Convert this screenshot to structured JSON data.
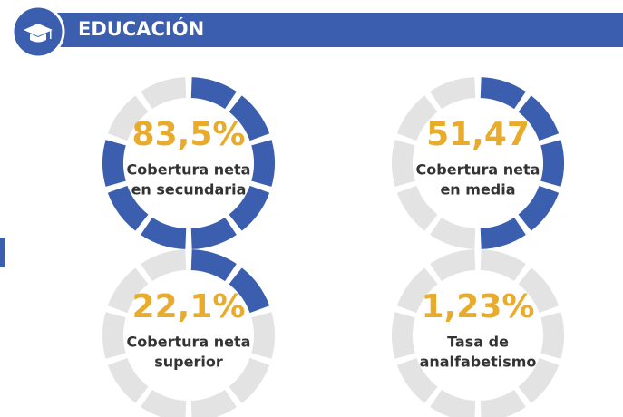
{
  "header": {
    "title": "EDUCACIÓN"
  },
  "chart_data": [
    {
      "type": "gauge",
      "value": 83.5,
      "value_label": "83,5%",
      "label": [
        "Cobertura neta",
        "en secundaria"
      ],
      "color": "#3b5eae"
    },
    {
      "type": "gauge",
      "value": 51.47,
      "value_label": "51,47",
      "label": [
        "Cobertura neta",
        "en media"
      ],
      "color": "#3b5eae"
    },
    {
      "type": "gauge",
      "value": 22.1,
      "value_label": "22,1%",
      "label": [
        "Cobertura neta",
        "superior"
      ],
      "color": "#3b5eae"
    },
    {
      "type": "gauge",
      "value": 1.23,
      "value_label": "1,23%",
      "label": [
        "Tasa de",
        "analfabetismo"
      ],
      "color": "#3b5eae"
    }
  ]
}
